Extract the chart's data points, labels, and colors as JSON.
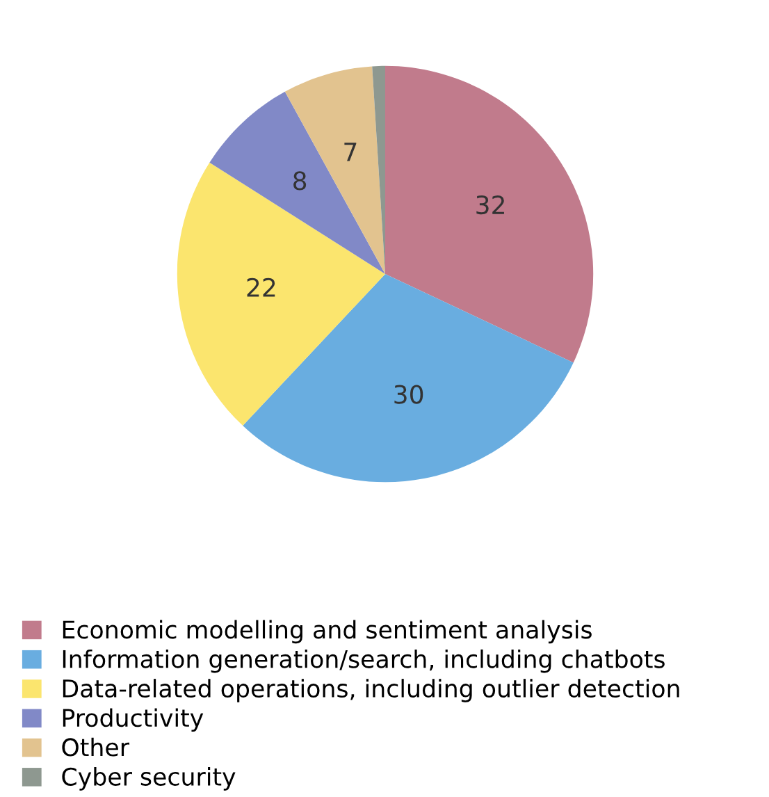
{
  "chart_data": {
    "type": "pie",
    "categories": [
      "Economic modelling and sentiment analysis",
      "Information generation/search, including chatbots",
      "Data-related operations, including outlier detection",
      "Productivity",
      "Other",
      "Cyber security"
    ],
    "values": [
      32,
      30,
      22,
      8,
      7,
      1
    ],
    "value_labels": [
      "32",
      "30",
      "22",
      "8",
      "7",
      null
    ],
    "colors": [
      "#c17b8c",
      "#69ade0",
      "#fbe56e",
      "#8189c7",
      "#e2c38f",
      "#8e9890"
    ],
    "legend": "bottom"
  }
}
